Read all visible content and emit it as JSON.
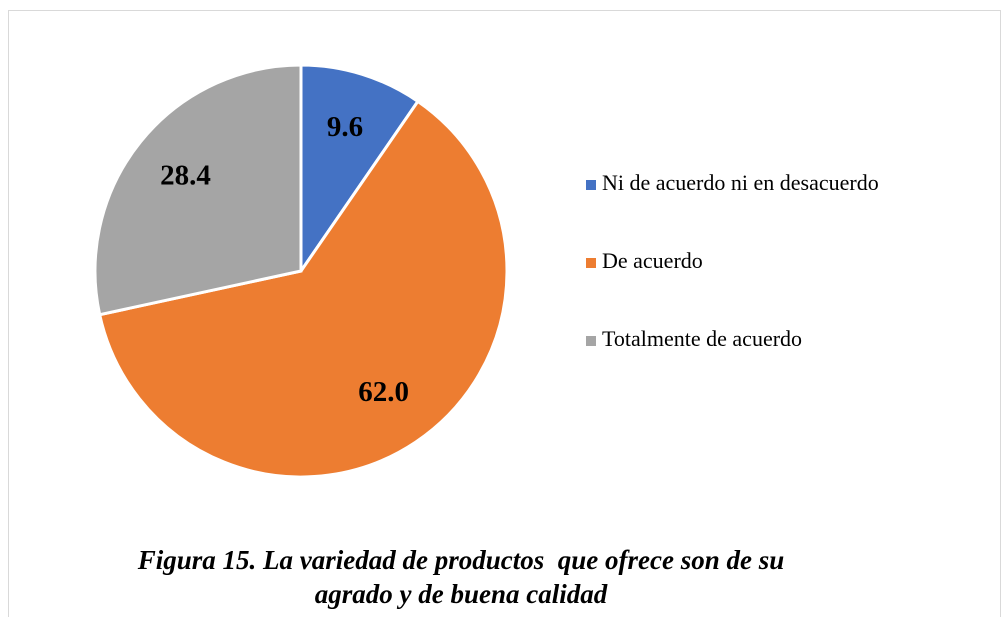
{
  "chart_data": {
    "type": "pie",
    "caption": "Figura 15. La variedad de productos  que ofrece son de su agrado y de buena calidad",
    "categories": [
      "Ni de acuerdo ni en desacuerdo",
      "De acuerdo",
      "Totalmente de acuerdo"
    ],
    "values": [
      9.6,
      62.0,
      28.4
    ],
    "value_labels": [
      "9.6",
      "62.0",
      "28.4"
    ],
    "colors": [
      "#4472c4",
      "#ed7d31",
      "#a5a5a5"
    ],
    "legend": "right"
  }
}
